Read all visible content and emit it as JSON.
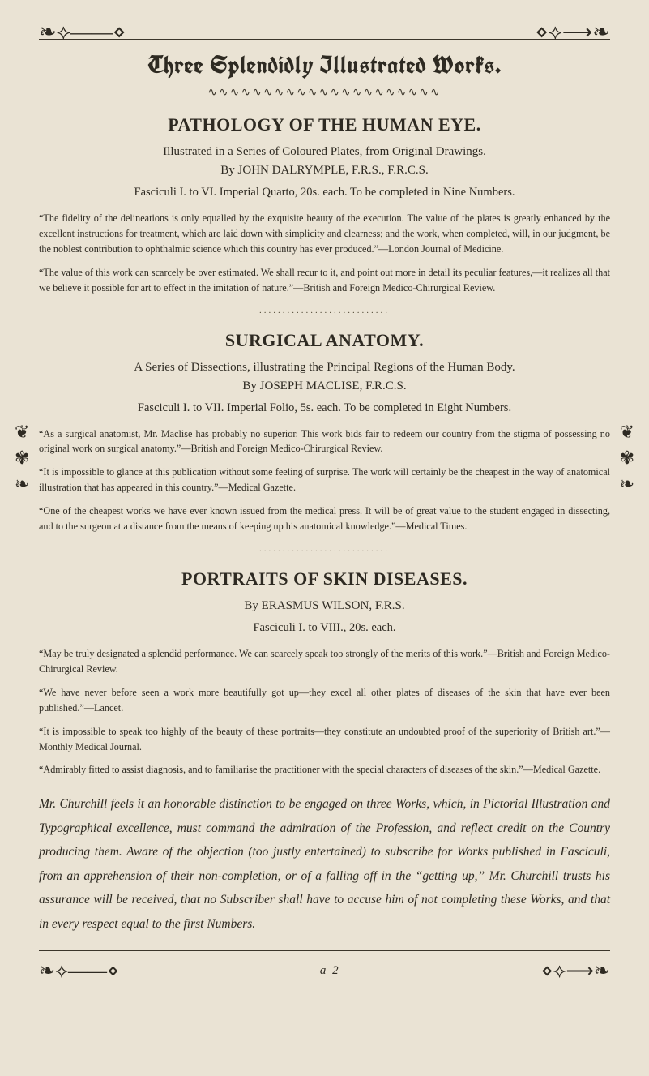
{
  "colors": {
    "paper_bg": "#eae3d4",
    "ink": "#2e2a22",
    "rule": "#3b352a",
    "faint": "#5a523f"
  },
  "typography": {
    "body_family": "Georgia, 'Times New Roman', serif",
    "blackletter_family": "'Old English Text MT', 'UnifrakturCook', Georgia, serif",
    "banner_size_pt": 30,
    "section_title_size_pt": 22,
    "subtitle_size_pt": 15,
    "fasciculi_size_pt": 14.5,
    "quote_size_pt": 12.2,
    "blurb_size_pt": 15.5,
    "sig_size_pt": 15
  },
  "ornaments": {
    "top_left": "❧⟡——⋄",
    "top_right": "⋄⟡⟶❧",
    "wave": "∿∿∿∿∿∿∿∿∿∿∿∿∿∿∿∿∿∿∿∿∿",
    "dots": "............................",
    "side_glyph_a": "❦",
    "side_glyph_b": "✾",
    "side_glyph_c": "❧",
    "bottom_left": "❧⟡——⋄",
    "bottom_right": "⋄⟡⟶❧"
  },
  "banner": "Three Splendidly Illustrated Works.",
  "section1": {
    "title": "PATHOLOGY OF THE HUMAN EYE.",
    "subtitle": "Illustrated in a Series of Coloured Plates, from Original Drawings.",
    "byline": "By JOHN DALRYMPLE, F.R.S., F.R.C.S.",
    "fasciculi": "Fasciculi I. to VI.   Imperial Quarto, 20s. each.   To be completed in Nine Numbers.",
    "quotes": [
      "“The fidelity of the delineations is only equalled by the exquisite beauty of the execution. The value of the plates is greatly enhanced by the excellent instructions for treatment, which are laid down with simplicity and clearness; and the work, when completed, will, in our judgment, be the noblest contribution to ophthalmic science which this country has ever produced.”—London Journal of Medicine.",
      "“The value of this work can scarcely be over estimated. We shall recur to it, and point out more in detail its peculiar features,—it realizes all that we believe it possible for art to effect in the imitation of nature.”—British and Foreign Medico-Chirurgical Review."
    ]
  },
  "section2": {
    "title": "SURGICAL ANATOMY.",
    "subtitle": "A Series of Dissections, illustrating the Principal Regions of the Human Body.",
    "byline": "By JOSEPH MACLISE, F.R.C.S.",
    "fasciculi": "Fasciculi I. to VII.   Imperial Folio, 5s. each.   To be completed in Eight Numbers.",
    "quotes": [
      "“As a surgical anatomist, Mr. Maclise has probably no superior. This work bids fair to redeem our country from the stigma of possessing no original work on surgical anatomy.”—British and Foreign Medico-Chirurgical Review.",
      "“It is impossible to glance at this publication without some feeling of surprise. The work will certainly be the cheapest in the way of anatomical illustration that has appeared in this country.”—Medical Gazette.",
      "“One of the cheapest works we have ever known issued from the medical press. It will be of great value to the student engaged in dissecting, and to the surgeon at a distance from the means of keeping up his anatomical knowledge.”—Medical Times."
    ]
  },
  "section3": {
    "title": "PORTRAITS OF SKIN DISEASES.",
    "byline": "By ERASMUS WILSON, F.R.S.",
    "fasciculi": "Fasciculi I. to VIII., 20s. each.",
    "quotes": [
      "“May be truly designated a splendid performance. We can scarcely speak too strongly of the merits of this work.”—British and Foreign Medico-Chirurgical Review.",
      "“We have never before seen a work more beautifully got up—they excel all other plates of diseases of the skin that have ever been published.”—Lancet.",
      "“It is impossible to speak too highly of the beauty of these portraits—they constitute an undoubted proof of the superiority of British art.”—Monthly Medical Journal.",
      "“Admirably fitted to assist diagnosis, and to familiarise the practitioner with the special characters of diseases of the skin.”—Medical Gazette."
    ]
  },
  "blurb": "Mr. Churchill feels it an honorable distinction to be engaged on three Works, which, in Pictorial Illustration and Typographical excellence, must command the admiration of the Profession, and reflect credit on the Country producing them. Aware of the objection (too justly entertained) to subscribe for Works published in Fasciculi, from an apprehension of their non-completion, or of a falling off in the “getting up,” Mr. Churchill trusts his assurance will be received, that no Subscriber shall have to accuse him of not completing these Works, and that in every respect equal to the first Numbers.",
  "signature": "a 2"
}
